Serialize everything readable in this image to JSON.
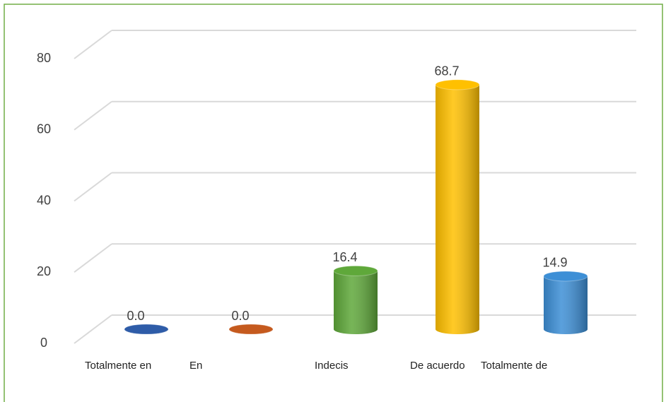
{
  "chart_data": {
    "type": "bar3d",
    "categories": [
      "Totalmente en",
      "En",
      "Indecis",
      "De acuerdo",
      "Totalmente de"
    ],
    "values": [
      0.0,
      0.0,
      16.4,
      68.7,
      14.9
    ],
    "value_labels": [
      "0.0",
      "0.0",
      "16.4",
      "68.7",
      "14.9"
    ],
    "colors": [
      "#2e5ca8",
      "#c55a1e",
      "#5fa83a",
      "#ffc000",
      "#3d8fd6"
    ],
    "ylim": [
      0,
      80
    ],
    "yticks": [
      0,
      20,
      40,
      60,
      80
    ],
    "grid": true
  }
}
